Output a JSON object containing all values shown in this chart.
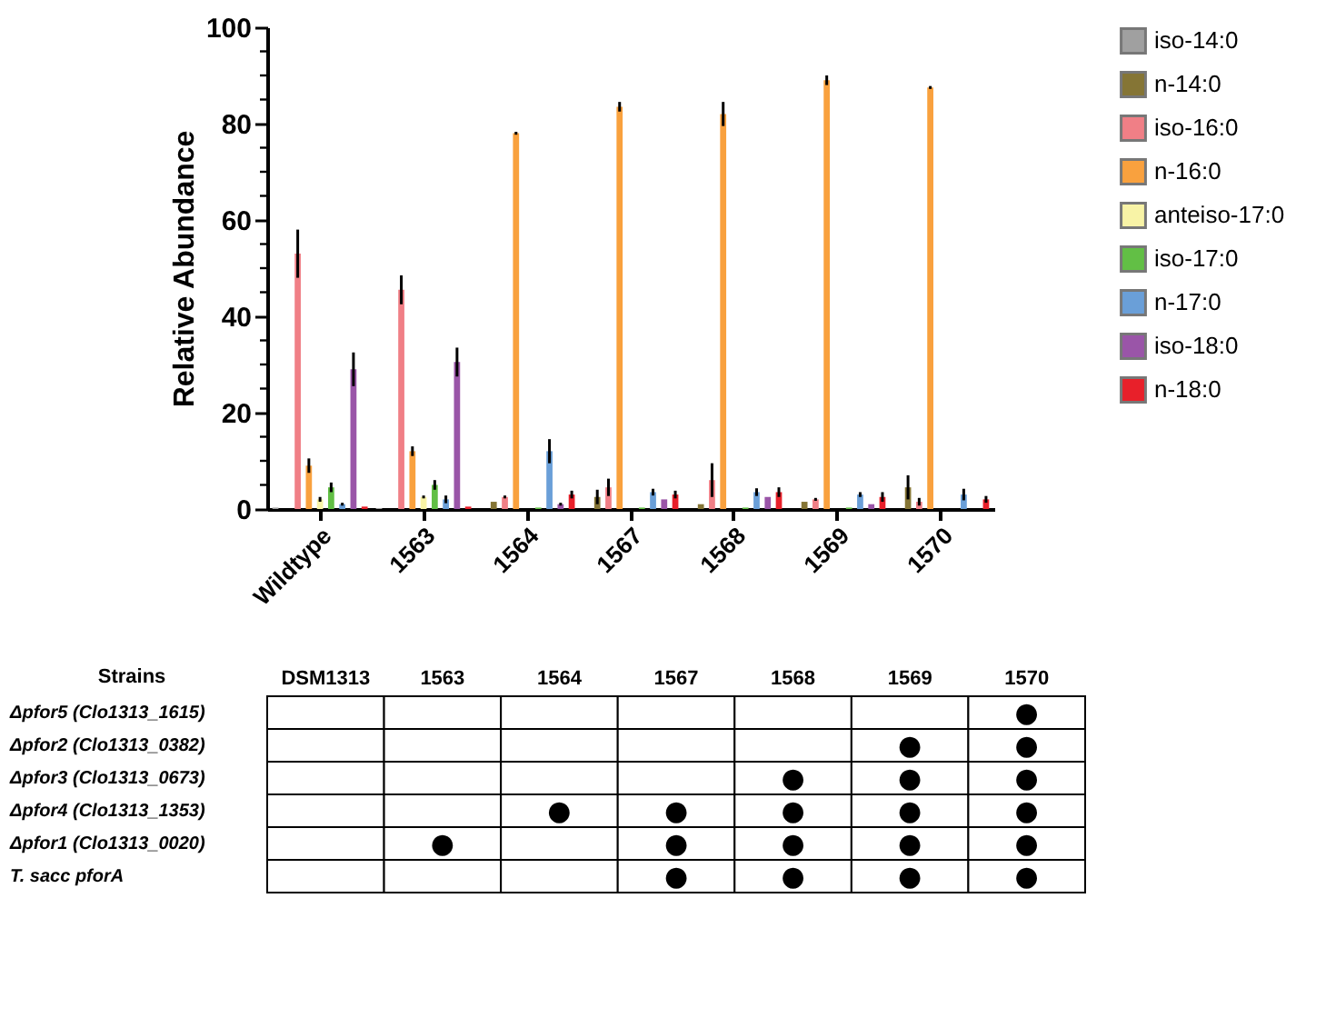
{
  "chart_data": [
    {
      "type": "bar",
      "ylabel": "Relative  Abundance",
      "categories": [
        "Wildtype",
        "1563",
        "1564",
        "1567",
        "1568",
        "1569",
        "1570"
      ],
      "series": [
        {
          "name": "iso-14:0",
          "color": "#a0a0a0",
          "values": [
            0.3,
            0.2,
            0,
            0,
            0,
            0,
            0
          ]
        },
        {
          "name": "n-14:0",
          "color": "#857535",
          "values": [
            0,
            0,
            1.5,
            2.5,
            1,
            1.5,
            4.5
          ],
          "errors": [
            null,
            null,
            null,
            1.5,
            null,
            null,
            2.5
          ]
        },
        {
          "name": "iso-16:0",
          "color": "#f07f86",
          "values": [
            53,
            45.5,
            2.5,
            4.5,
            6,
            2,
            1.5
          ],
          "errors": [
            5,
            3,
            0.3,
            1.8,
            3.5,
            0.3,
            0.8
          ]
        },
        {
          "name": "n-16:0",
          "color": "#f9a13e",
          "values": [
            9,
            12,
            78,
            83.5,
            82,
            89,
            87.5
          ],
          "errors": [
            1.5,
            1,
            0.3,
            1,
            2.5,
            1,
            0.3
          ]
        },
        {
          "name": "anteiso-17:0",
          "color": "#f8f3a6",
          "values": [
            2,
            2.5,
            0,
            0,
            0,
            0,
            0
          ],
          "errors": [
            0.5,
            0.3,
            null,
            null,
            null,
            null,
            null
          ]
        },
        {
          "name": "iso-17:0",
          "color": "#62bf45",
          "values": [
            4.5,
            5,
            0.3,
            0.3,
            0.3,
            0.3,
            0
          ],
          "errors": [
            1,
            1,
            null,
            null,
            null,
            null,
            null
          ]
        },
        {
          "name": "n-17:0",
          "color": "#6a9fd8",
          "values": [
            1,
            2,
            12,
            3.5,
            3.5,
            3,
            3
          ],
          "errors": [
            0.3,
            0.8,
            2.5,
            0.7,
            0.8,
            0.5,
            1.2
          ]
        },
        {
          "name": "iso-18:0",
          "color": "#9a55a8",
          "values": [
            29,
            30.5,
            1,
            2,
            2.5,
            1,
            0
          ],
          "errors": [
            3.5,
            3,
            0.3,
            null,
            null,
            null,
            null
          ]
        },
        {
          "name": "n-18:0",
          "color": "#e8202a",
          "values": [
            0.5,
            0.5,
            3,
            3,
            3.5,
            2.5,
            2
          ],
          "errors": [
            null,
            null,
            0.8,
            0.8,
            1,
            1,
            0.7
          ]
        }
      ],
      "ylim": [
        0,
        100
      ],
      "yticks": [
        0,
        {
          "value": 5,
          "label": null
        },
        {
          "value": 10,
          "label": null
        },
        {
          "value": 15,
          "label": null
        },
        20,
        {
          "value": 25,
          "label": null
        },
        {
          "value": 30,
          "label": null
        },
        {
          "value": 35,
          "label": null
        },
        40,
        {
          "value": 45,
          "label": null
        },
        {
          "value": 50,
          "label": null
        },
        {
          "value": 55,
          "label": null
        },
        60,
        {
          "value": 65,
          "label": null
        },
        {
          "value": 70,
          "label": null
        },
        {
          "value": 75,
          "label": null
        },
        80,
        {
          "value": 85,
          "label": null
        },
        {
          "value": 90,
          "label": null
        },
        {
          "value": 95,
          "label": null
        },
        100
      ],
      "grid": false,
      "legend": "top right"
    },
    {
      "type": "heatmap",
      "ylabel": "Strains",
      "categories": [
        "DSM1313",
        "1563",
        "1564",
        "1567",
        "1568",
        "1569",
        "1570"
      ],
      "y_categories": [
        "Δpfor5 (Clo1313_1615)",
        "Δpfor2 (Clo1313_0382)",
        "Δpfor3 (Clo1313_0673)",
        "Δpfor4 (Clo1313_1353)",
        "Δpfor1 (Clo1313_0020)",
        "T. sacc pforA"
      ],
      "cells": [
        [
          null,
          null,
          null,
          null,
          null,
          null,
          "●"
        ],
        [
          null,
          null,
          null,
          null,
          null,
          "●",
          "●"
        ],
        [
          null,
          null,
          null,
          null,
          "●",
          "●",
          "●"
        ],
        [
          null,
          null,
          "●",
          "●",
          "●",
          "●",
          "●"
        ],
        [
          null,
          "●",
          null,
          "●",
          "●",
          "●",
          "●"
        ],
        [
          null,
          null,
          null,
          "●",
          "●",
          "●",
          "●"
        ]
      ]
    }
  ]
}
